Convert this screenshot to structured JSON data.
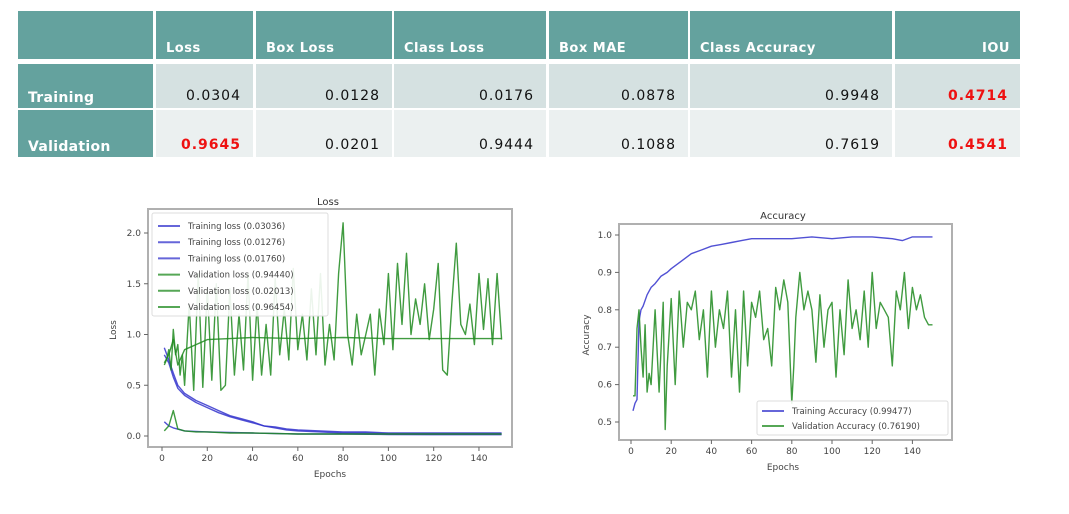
{
  "table": {
    "columns": [
      "",
      "Loss",
      "Box Loss",
      "Class Loss",
      "Box MAE",
      "Class Accuracy",
      "IOU"
    ],
    "rows": [
      {
        "label": "Training",
        "values": [
          "0.0304",
          "0.0128",
          "0.0176",
          "0.0878",
          "0.9948",
          "0.4714"
        ],
        "highlight": [
          false,
          false,
          false,
          false,
          false,
          true
        ]
      },
      {
        "label": "Validation",
        "values": [
          "0.9645",
          "0.0201",
          "0.9444",
          "0.1088",
          "0.7619",
          "0.4541"
        ],
        "highlight": [
          true,
          false,
          false,
          false,
          false,
          true
        ]
      }
    ],
    "colors": {
      "header_bg": "#64a29e",
      "row1_bg": "#d5e1e1",
      "row2_bg": "#ebf0f0",
      "highlight": "#ee1111"
    }
  },
  "chart_data": [
    {
      "type": "line",
      "title": "Loss",
      "xlabel": "Epochs",
      "ylabel": "Loss",
      "xlim": [
        -5,
        155
      ],
      "ylim": [
        -0.05,
        2.2
      ],
      "xticks": [
        0,
        20,
        40,
        60,
        80,
        100,
        120,
        140
      ],
      "yticks": [
        0.0,
        0.5,
        1.0,
        1.5,
        2.0
      ],
      "ytick_labels": [
        "0.0",
        "0.5",
        "1.0",
        "1.5",
        "2.0"
      ],
      "grid": false,
      "legend_position": "upper left",
      "legend": [
        "Training loss (0.03036)",
        "Training loss (0.01276)",
        "Training loss (0.01760)",
        "Validation loss (0.94440)",
        "Validation loss (0.02013)",
        "Validation loss (0.96454)"
      ],
      "series": [
        {
          "name": "Training loss (0.03036)",
          "color": "#3333cc",
          "x": [
            1,
            3,
            5,
            7,
            10,
            15,
            20,
            25,
            30,
            35,
            40,
            45,
            50,
            55,
            60,
            70,
            80,
            90,
            100,
            110,
            120,
            130,
            140,
            150
          ],
          "values": [
            0.87,
            0.75,
            0.62,
            0.5,
            0.42,
            0.35,
            0.3,
            0.25,
            0.2,
            0.17,
            0.14,
            0.1,
            0.09,
            0.07,
            0.06,
            0.05,
            0.04,
            0.04,
            0.03,
            0.03,
            0.03,
            0.03,
            0.03,
            0.03
          ]
        },
        {
          "name": "Training loss (0.01276)",
          "color": "#3333cc",
          "x": [
            1,
            3,
            5,
            10,
            20,
            40,
            60,
            80,
            100,
            120,
            140,
            150
          ],
          "values": [
            0.14,
            0.1,
            0.08,
            0.05,
            0.04,
            0.03,
            0.02,
            0.02,
            0.015,
            0.013,
            0.013,
            0.013
          ]
        },
        {
          "name": "Training loss (0.01760)",
          "color": "#3333cc",
          "x": [
            1,
            3,
            5,
            7,
            10,
            15,
            20,
            25,
            30,
            35,
            40,
            45,
            50,
            55,
            60,
            70,
            80,
            90,
            100,
            110,
            120,
            130,
            140,
            150
          ],
          "values": [
            0.8,
            0.72,
            0.58,
            0.47,
            0.4,
            0.33,
            0.28,
            0.23,
            0.19,
            0.16,
            0.13,
            0.1,
            0.08,
            0.06,
            0.05,
            0.04,
            0.03,
            0.03,
            0.02,
            0.02,
            0.02,
            0.02,
            0.02,
            0.02
          ]
        },
        {
          "name": "Validation loss (0.94440)",
          "color": "#1e8a1e",
          "x": [
            1,
            2,
            3,
            4,
            5,
            6,
            7,
            8,
            9,
            10,
            12,
            14,
            16,
            18,
            20,
            22,
            24,
            26,
            28,
            30,
            32,
            34,
            36,
            38,
            40,
            42,
            44,
            46,
            48,
            50,
            52,
            54,
            56,
            58,
            60,
            62,
            64,
            66,
            68,
            70,
            72,
            74,
            76,
            78,
            80,
            82,
            84,
            86,
            88,
            90,
            92,
            94,
            96,
            98,
            100,
            102,
            104,
            106,
            108,
            110,
            112,
            114,
            116,
            118,
            120,
            122,
            124,
            126,
            128,
            130,
            132,
            134,
            136,
            138,
            140,
            142,
            144,
            146,
            148,
            150
          ],
          "values": [
            0.7,
            0.75,
            0.85,
            0.65,
            1.05,
            0.8,
            0.9,
            0.6,
            0.8,
            0.5,
            1.3,
            0.45,
            1.6,
            0.48,
            1.45,
            0.55,
            1.5,
            0.45,
            0.5,
            1.45,
            0.6,
            1.2,
            0.65,
            1.6,
            0.55,
            1.3,
            0.6,
            1.1,
            0.6,
            1.55,
            0.8,
            1.25,
            0.75,
            1.65,
            0.85,
            1.2,
            0.75,
            1.45,
            0.8,
            1.6,
            0.7,
            1.1,
            0.75,
            1.6,
            2.1,
            1.0,
            0.7,
            1.2,
            0.8,
            1.0,
            1.2,
            0.6,
            1.25,
            0.9,
            1.6,
            0.85,
            1.7,
            1.1,
            1.8,
            1.0,
            1.35,
            1.1,
            1.5,
            0.95,
            1.25,
            1.7,
            0.65,
            0.6,
            1.3,
            1.9,
            1.1,
            1.0,
            1.3,
            0.9,
            1.6,
            1.05,
            1.55,
            0.9,
            1.6,
            0.95
          ]
        },
        {
          "name": "Validation loss (0.02013)",
          "color": "#1e8a1e",
          "x": [
            1,
            3,
            5,
            7,
            10,
            15,
            20,
            30,
            40,
            60,
            80,
            100,
            120,
            140,
            150
          ],
          "values": [
            0.05,
            0.1,
            0.25,
            0.07,
            0.05,
            0.04,
            0.04,
            0.03,
            0.03,
            0.02,
            0.02,
            0.02,
            0.02,
            0.02,
            0.02
          ]
        },
        {
          "name": "Validation loss (0.96454)",
          "color": "#1e8a1e",
          "x": [
            1,
            3,
            5,
            7,
            10,
            15,
            20,
            30,
            40,
            60,
            80,
            100,
            120,
            140,
            150
          ],
          "values": [
            0.72,
            0.8,
            0.95,
            0.7,
            0.85,
            0.9,
            0.95,
            0.96,
            0.97,
            0.96,
            0.97,
            0.96,
            0.96,
            0.96,
            0.96
          ]
        }
      ]
    },
    {
      "type": "line",
      "title": "Accuracy",
      "xlabel": "Epochs",
      "ylabel": "Accuracy",
      "xlim": [
        -5,
        155
      ],
      "ylim": [
        0.45,
        1.03
      ],
      "xticks": [
        0,
        20,
        40,
        60,
        80,
        100,
        120,
        140
      ],
      "yticks": [
        0.5,
        0.6,
        0.7,
        0.8,
        0.9,
        1.0
      ],
      "ytick_labels": [
        "0.5",
        "0.6",
        "0.7",
        "0.8",
        "0.9",
        "1.0"
      ],
      "grid": false,
      "legend_position": "lower right",
      "legend": [
        "Training Accuracy (0.99477)",
        "Validation Accuracy (0.76190)"
      ],
      "series": [
        {
          "name": "Training Accuracy (0.99477)",
          "color": "#3333cc",
          "x": [
            1,
            2,
            3,
            4,
            5,
            6,
            8,
            10,
            12,
            15,
            18,
            20,
            25,
            30,
            35,
            40,
            45,
            50,
            55,
            60,
            70,
            80,
            90,
            100,
            110,
            120,
            130,
            135,
            140,
            150
          ],
          "values": [
            0.53,
            0.55,
            0.56,
            0.77,
            0.8,
            0.81,
            0.84,
            0.86,
            0.87,
            0.89,
            0.9,
            0.91,
            0.93,
            0.95,
            0.96,
            0.97,
            0.975,
            0.98,
            0.985,
            0.99,
            0.99,
            0.99,
            0.995,
            0.99,
            0.995,
            0.995,
            0.99,
            0.985,
            0.995,
            0.995
          ]
        },
        {
          "name": "Validation Accuracy (0.76190)",
          "color": "#1e8a1e",
          "x": [
            1,
            2,
            3,
            4,
            5,
            6,
            7,
            8,
            9,
            10,
            12,
            14,
            16,
            17,
            18,
            20,
            22,
            24,
            26,
            28,
            30,
            32,
            34,
            36,
            38,
            40,
            42,
            44,
            46,
            48,
            50,
            52,
            54,
            56,
            58,
            60,
            62,
            64,
            66,
            68,
            70,
            72,
            74,
            76,
            78,
            80,
            81,
            82,
            84,
            86,
            88,
            90,
            92,
            94,
            96,
            98,
            100,
            102,
            104,
            106,
            108,
            110,
            112,
            114,
            116,
            118,
            120,
            122,
            124,
            126,
            128,
            130,
            132,
            134,
            136,
            138,
            140,
            142,
            144,
            146,
            148,
            150
          ],
          "values": [
            0.57,
            0.57,
            0.75,
            0.8,
            0.7,
            0.62,
            0.76,
            0.58,
            0.63,
            0.6,
            0.8,
            0.58,
            0.82,
            0.48,
            0.65,
            0.83,
            0.6,
            0.85,
            0.7,
            0.82,
            0.8,
            0.85,
            0.72,
            0.8,
            0.62,
            0.85,
            0.7,
            0.8,
            0.75,
            0.85,
            0.62,
            0.8,
            0.58,
            0.85,
            0.65,
            0.82,
            0.78,
            0.85,
            0.72,
            0.75,
            0.65,
            0.86,
            0.8,
            0.88,
            0.82,
            0.55,
            0.65,
            0.78,
            0.9,
            0.8,
            0.85,
            0.8,
            0.66,
            0.84,
            0.7,
            0.8,
            0.82,
            0.62,
            0.8,
            0.68,
            0.88,
            0.75,
            0.8,
            0.72,
            0.85,
            0.7,
            0.9,
            0.75,
            0.82,
            0.8,
            0.78,
            0.65,
            0.85,
            0.8,
            0.9,
            0.75,
            0.86,
            0.8,
            0.84,
            0.78,
            0.76,
            0.76
          ]
        }
      ]
    }
  ]
}
